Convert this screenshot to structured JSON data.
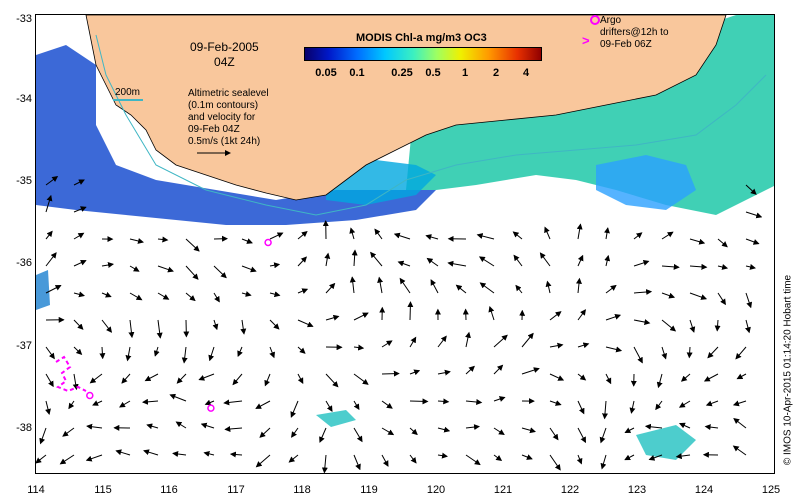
{
  "map": {
    "lat_ticks": [
      "-33",
      "-34",
      "-35",
      "-36",
      "-37",
      "-38"
    ],
    "lon_ticks": [
      "114",
      "115",
      "116",
      "117",
      "118",
      "119",
      "120",
      "121",
      "122",
      "123",
      "124",
      "125"
    ],
    "lat_range": [
      -38.5,
      -33
    ],
    "lon_range": [
      114,
      125
    ],
    "date": "09-Feb-2005",
    "time": "04Z",
    "depth_contour_label": "200m",
    "info_lines": [
      "Altimetric sealevel",
      "(0.1m contours)",
      "and velocity for",
      "09-Feb 04Z",
      "0.5m/s (1kt 24h)"
    ],
    "colorbar": {
      "title": "MODIS Chl-a mg/m3 OC3",
      "ticks": [
        "0.05",
        "0.1",
        "0.25",
        "0.5",
        "1",
        "2",
        "4"
      ]
    },
    "argo_legend": [
      "Argo",
      "drifters@12h to",
      "09-Feb 06Z"
    ],
    "credit": "© IMOS 10-Apr-2015 01:14:20 Hobart time",
    "colors": {
      "land": "#f9c79c",
      "drifter": "#ff00ff",
      "contour": "#3fb6c4",
      "chl_low": "#0018c8",
      "chl_mid": "#00c8d0",
      "chl_high": "#a0e000"
    },
    "argo_positions": [
      {
        "lon": 117.45,
        "lat": -35.72
      },
      {
        "lon": 116.6,
        "lat": -37.7
      },
      {
        "lon": 114.8,
        "lat": -37.55
      }
    ]
  }
}
